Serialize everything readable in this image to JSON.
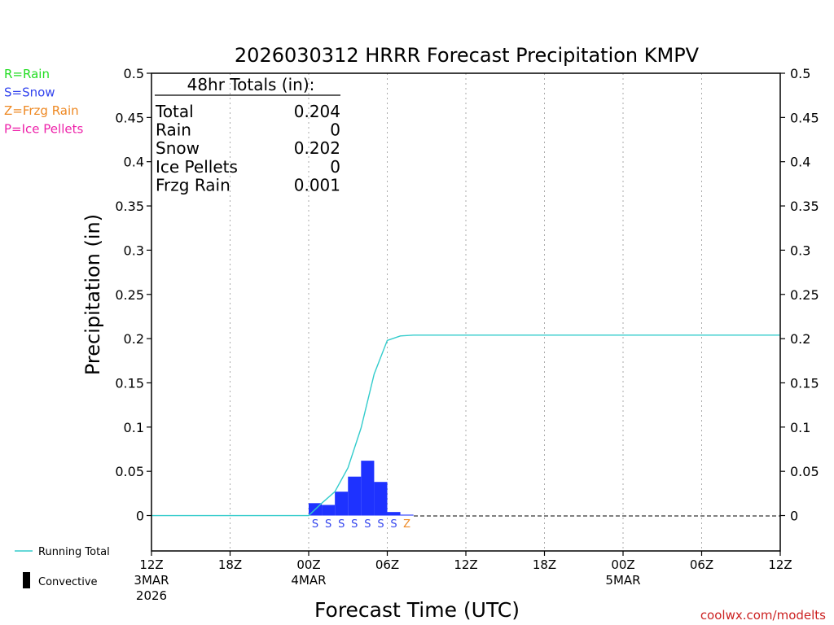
{
  "chart_data": {
    "type": "bar",
    "title": "2026030312 HRRR Forecast Precipitation KMPV",
    "xlabel": "Forecast Time (UTC)",
    "ylabel": "Precipitation (in)",
    "ylim": [
      -0.04,
      0.5
    ],
    "xlim_hours": [
      0,
      48
    ],
    "y_ticks": [
      {
        "value": 0.5,
        "label": "0.5"
      },
      {
        "value": 0.45,
        "label": "0.45"
      },
      {
        "value": 0.4,
        "label": "0.4"
      },
      {
        "value": 0.35,
        "label": "0.35"
      },
      {
        "value": 0.3,
        "label": "0.3"
      },
      {
        "value": 0.25,
        "label": "0.25"
      },
      {
        "value": 0.2,
        "label": "0.2"
      },
      {
        "value": 0.15,
        "label": "0.15"
      },
      {
        "value": 0.1,
        "label": "0.1"
      },
      {
        "value": 0.05,
        "label": "0.05"
      },
      {
        "value": 0,
        "label": "0"
      }
    ],
    "x_ticks": [
      {
        "hour": 0,
        "lines": [
          "12Z",
          "3MAR",
          "2026"
        ]
      },
      {
        "hour": 6,
        "lines": [
          "18Z"
        ]
      },
      {
        "hour": 12,
        "lines": [
          "00Z",
          "4MAR"
        ]
      },
      {
        "hour": 18,
        "lines": [
          "06Z"
        ]
      },
      {
        "hour": 24,
        "lines": [
          "12Z"
        ]
      },
      {
        "hour": 30,
        "lines": [
          "18Z"
        ]
      },
      {
        "hour": 36,
        "lines": [
          "00Z",
          "5MAR"
        ]
      },
      {
        "hour": 42,
        "lines": [
          "06Z"
        ]
      },
      {
        "hour": 48,
        "lines": [
          "12Z"
        ]
      }
    ],
    "grid": "vertical dotted at 6-hour ticks",
    "bars": [
      {
        "hour": 13,
        "value": 0.014,
        "ptype": "S"
      },
      {
        "hour": 14,
        "value": 0.012,
        "ptype": "S"
      },
      {
        "hour": 15,
        "value": 0.027,
        "ptype": "S"
      },
      {
        "hour": 16,
        "value": 0.044,
        "ptype": "S"
      },
      {
        "hour": 17,
        "value": 0.062,
        "ptype": "S"
      },
      {
        "hour": 18,
        "value": 0.038,
        "ptype": "S"
      },
      {
        "hour": 19,
        "value": 0.004,
        "ptype": "S"
      },
      {
        "hour": 20,
        "value": 0.001,
        "ptype": "Z"
      }
    ],
    "running_total": {
      "name": "Running Total",
      "x": [
        0,
        12,
        13,
        14,
        15,
        16,
        17,
        18,
        19,
        20,
        48
      ],
      "y": [
        0,
        0,
        0.014,
        0.027,
        0.054,
        0.099,
        0.16,
        0.198,
        0.203,
        0.204,
        0.204
      ]
    },
    "totals_box": {
      "header": "48hr Totals (in):",
      "rows": [
        {
          "label": "Total",
          "value": "0.204"
        },
        {
          "label": "Rain",
          "value": "0"
        },
        {
          "label": "Snow",
          "value": "0.202"
        },
        {
          "label": "Ice Pellets",
          "value": "0"
        },
        {
          "label": "Frzg Rain",
          "value": "0.001"
        }
      ]
    },
    "ptype_legend": [
      {
        "code": "R",
        "text": "R=Rain",
        "color": "#22dd22"
      },
      {
        "code": "S",
        "text": "S=Snow",
        "color": "#3344ee"
      },
      {
        "code": "Z",
        "text": "Z=Frzg Rain",
        "color": "#ee8822"
      },
      {
        "code": "P",
        "text": "P=Ice Pellets",
        "color": "#ee22aa"
      }
    ],
    "bottom_legend": {
      "running_total": "Running Total",
      "convective": "Convective"
    },
    "colors": {
      "bar": "#1e32ff",
      "running_total": "#33cccc",
      "credit": "#cc2222"
    },
    "credit": "coolwx.com/modelts"
  }
}
